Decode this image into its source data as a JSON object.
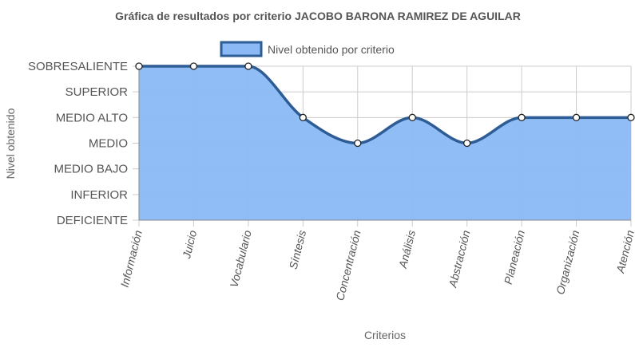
{
  "chart_data": {
    "type": "area",
    "title": "Gráfica de resultados por criterio JACOBO BARONA RAMIREZ DE AGUILAR",
    "xlabel": "Criterios",
    "ylabel": "Nivel obtenido",
    "categories": [
      "Información",
      "Juicio",
      "Vocabulario",
      "Síntesis",
      "Concentración",
      "Análisis",
      "Abstracción",
      "Planeación",
      "Organización",
      "Atención"
    ],
    "y_levels": [
      "DEFICIENTE",
      "INFERIOR",
      "MEDIO BAJO",
      "MEDIO",
      "MEDIO ALTO",
      "SUPERIOR",
      "SOBRESALIENTE"
    ],
    "ylim": [
      0,
      6
    ],
    "series": [
      {
        "name": "Nivel obtenido por criterio",
        "values": [
          6,
          6,
          6,
          4,
          3,
          4,
          3,
          4,
          4,
          4
        ],
        "value_labels": [
          "SOBRESALIENTE",
          "SOBRESALIENTE",
          "SOBRESALIENTE",
          "MEDIO ALTO",
          "MEDIO",
          "MEDIO ALTO",
          "MEDIO",
          "MEDIO ALTO",
          "MEDIO ALTO",
          "MEDIO ALTO"
        ]
      }
    ],
    "legend_position": "top",
    "grid": true,
    "colors": {
      "line": "#2e5d96",
      "fill": "#8ab9f5",
      "grid": "#cccccc",
      "axis": "#888888",
      "point_fill": "#ffffff"
    }
  }
}
